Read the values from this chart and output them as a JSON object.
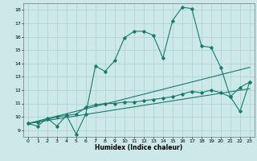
{
  "title": "",
  "xlabel": "Humidex (Indice chaleur)",
  "bg_color": "#cce8e8",
  "line_color": "#1a7a6e",
  "grid_color": "#aad0d0",
  "xlim": [
    -0.5,
    23.5
  ],
  "ylim": [
    8.5,
    18.5
  ],
  "xticks": [
    0,
    1,
    2,
    3,
    4,
    5,
    6,
    7,
    8,
    9,
    10,
    11,
    12,
    13,
    14,
    15,
    16,
    17,
    18,
    19,
    20,
    21,
    22,
    23
  ],
  "yticks": [
    9,
    10,
    11,
    12,
    13,
    14,
    15,
    16,
    17,
    18
  ],
  "line1_x": [
    0,
    1,
    2,
    3,
    4,
    5,
    6,
    7,
    8,
    9,
    10,
    11,
    12,
    13,
    14,
    15,
    16,
    17,
    18,
    19,
    20,
    21,
    22,
    23
  ],
  "line1_y": [
    9.5,
    9.3,
    9.9,
    9.3,
    10.1,
    8.7,
    10.2,
    13.8,
    13.4,
    14.2,
    15.9,
    16.4,
    16.4,
    16.1,
    14.4,
    17.2,
    18.2,
    18.1,
    15.3,
    15.2,
    13.7,
    11.5,
    10.4,
    12.6
  ],
  "line2_x": [
    0,
    1,
    2,
    3,
    4,
    5,
    6,
    7,
    8,
    9,
    10,
    11,
    12,
    13,
    14,
    15,
    16,
    17,
    18,
    19,
    20,
    21,
    22,
    23
  ],
  "line2_y": [
    9.5,
    9.6,
    9.8,
    10.0,
    10.1,
    10.2,
    10.7,
    10.9,
    11.0,
    11.0,
    11.1,
    11.1,
    11.2,
    11.3,
    11.4,
    11.5,
    11.7,
    11.9,
    11.8,
    12.0,
    11.8,
    11.5,
    12.2,
    12.6
  ],
  "line3_x": [
    0,
    23
  ],
  "line3_y": [
    9.5,
    13.7
  ],
  "line4_x": [
    0,
    23
  ],
  "line4_y": [
    9.5,
    12.1
  ]
}
